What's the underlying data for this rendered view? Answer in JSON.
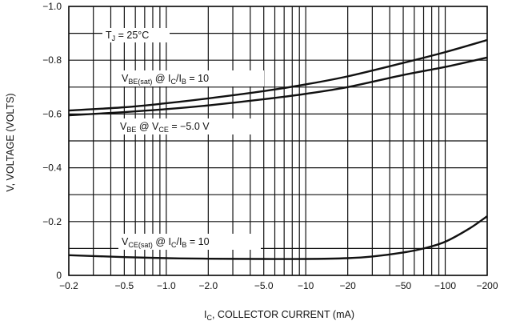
{
  "chart_data": {
    "type": "line",
    "x_scale": "log",
    "grid": true,
    "xlabel_main": "I",
    "xlabel_sub": "C",
    "xlabel_rest": ", COLLECTOR CURRENT (mA)",
    "ylabel": "V, VOLTAGE (VOLTS)",
    "xlim": [
      0.2,
      200
    ],
    "ylim": [
      0,
      1.0
    ],
    "x_ticks": [
      {
        "value": 0.2,
        "label": "−0.2"
      },
      {
        "value": 0.5,
        "label": "−0.5"
      },
      {
        "value": 1,
        "label": "−1.0"
      },
      {
        "value": 2,
        "label": "−2.0"
      },
      {
        "value": 5,
        "label": "−5.0"
      },
      {
        "value": 10,
        "label": "−10"
      },
      {
        "value": 20,
        "label": "−20"
      },
      {
        "value": 50,
        "label": "−50"
      },
      {
        "value": 100,
        "label": "−100"
      },
      {
        "value": 200,
        "label": "−200"
      }
    ],
    "y_ticks": [
      {
        "value": 0,
        "label": "0"
      },
      {
        "value": 0.2,
        "label": "−0.2"
      },
      {
        "value": 0.4,
        "label": "−0.4"
      },
      {
        "value": 0.6,
        "label": "−0.6"
      },
      {
        "value": 0.8,
        "label": "−0.8"
      },
      {
        "value": 1.0,
        "label": "−1.0"
      }
    ],
    "series": [
      {
        "x": [
          0.2,
          0.5,
          1,
          2,
          5,
          10,
          20,
          50,
          100,
          200
        ],
        "y": [
          0.613,
          0.625,
          0.64,
          0.658,
          0.685,
          0.71,
          0.74,
          0.79,
          0.83,
          0.875
        ]
      },
      {
        "x": [
          0.2,
          0.5,
          1,
          2,
          5,
          10,
          20,
          50,
          100,
          200
        ],
        "y": [
          0.595,
          0.607,
          0.618,
          0.632,
          0.655,
          0.675,
          0.7,
          0.745,
          0.775,
          0.81
        ]
      },
      {
        "x": [
          0.2,
          0.5,
          1,
          2,
          5,
          10,
          20,
          30,
          50,
          70,
          100,
          150,
          200
        ],
        "y": [
          0.075,
          0.068,
          0.064,
          0.062,
          0.061,
          0.061,
          0.064,
          0.07,
          0.085,
          0.1,
          0.125,
          0.175,
          0.22
        ]
      }
    ],
    "annotations": {
      "tj": {
        "main": "T",
        "sub": "J",
        "rest": " = 25°C"
      },
      "vbe_sat": {
        "p1": "V",
        "s1": "BE(sat)",
        "p2": " @ I",
        "s2": "C",
        "p3": "/I",
        "s3": "B",
        "p4": " = 10"
      },
      "vbe": {
        "p1": "V",
        "s1": "BE",
        "p2": " @ V",
        "s2": "CE",
        "p3": " = −5.0 V"
      },
      "vce_sat": {
        "p1": "V",
        "s1": "CE(sat)",
        "p2": " @ I",
        "s2": "C",
        "p3": "/I",
        "s3": "B",
        "p4": " = 10"
      }
    }
  }
}
